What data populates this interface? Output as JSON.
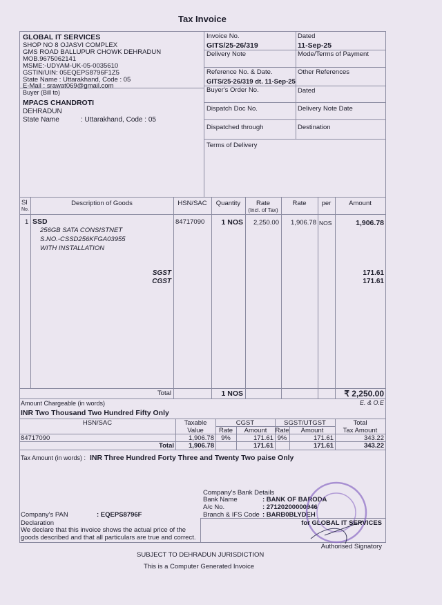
{
  "title": "Tax Invoice",
  "seller": {
    "name": "GLOBAL IT SERVICES",
    "lines": [
      "SHOP NO 8 OJASVI COMPLEX",
      "GMS ROAD BALLUPUR CHOWK DEHRADUN",
      "MOB.9675062141",
      "MSME:-UDYAM-UK-05-0035610",
      "GSTIN/UIN: 05EQEPS8796F1Z5",
      "State Name :  Uttarakhand, Code : 05",
      "E-Mail : srawat069@gmail.com"
    ]
  },
  "buyer": {
    "label": "Buyer (Bill to)",
    "name": "MPACS CHANDROTI",
    "city": "DEHRADUN",
    "state_label": "State Name",
    "state_value": ":  Uttarakhand, Code : 05"
  },
  "meta": {
    "invoice_no_label": "Invoice No.",
    "invoice_no": "GITS/25-26/319",
    "dated_label": "Dated",
    "dated": "11-Sep-25",
    "delivery_note": "Delivery Note",
    "mode_terms": "Mode/Terms of Payment",
    "ref_label": "Reference No. & Date.",
    "ref_value": "GITS/25-26/319  dt. 11-Sep-25",
    "other_refs": "Other References",
    "buyers_order": "Buyer's Order No.",
    "dated2": "Dated",
    "dispatch_doc": "Dispatch Doc No.",
    "delivery_note_date": "Delivery Note Date",
    "dispatched_through": "Dispatched through",
    "destination": "Destination",
    "terms_delivery": "Terms of Delivery"
  },
  "items": {
    "headers": {
      "sl": "Sl",
      "no": "No.",
      "desc": "Description of Goods",
      "hsn": "HSN/SAC",
      "qty": "Quantity",
      "rate_incl": "Rate",
      "rate_incl2": "(Incl. of Tax)",
      "rate": "Rate",
      "per": "per",
      "amount": "Amount"
    },
    "row": {
      "sl": "1",
      "name": "SSD",
      "desc": [
        "256GB SATA CONSISTNET",
        "S.NO.-CSSD256KFGA03955",
        "WITH INSTALLATION"
      ],
      "hsn": "84717090",
      "qty": "1 NOS",
      "rate_incl": "2,250.00",
      "rate": "1,906.78",
      "per": "NOS",
      "amount": "1,906.78"
    },
    "sgst_label": "SGST",
    "sgst": "171.61",
    "cgst_label": "CGST",
    "cgst": "171.61",
    "total_label": "Total",
    "total_qty": "1 NOS",
    "total_amount": "₹ 2,250.00",
    "eoe": "E. & O.E"
  },
  "amount_words_label": "Amount Chargeable (in words)",
  "amount_words": "INR Two Thousand Two Hundred Fifty Only",
  "tax_table": {
    "hsn": "HSN/SAC",
    "taxable": "Taxable",
    "value": "Value",
    "cgst": "CGST",
    "sgst": "SGST/UTGST",
    "rate": "Rate",
    "amount": "Amount",
    "total": "Total",
    "tax_amount": "Tax Amount",
    "row": {
      "hsn": "84717090",
      "taxable": "1,906.78",
      "cgst_rate": "9%",
      "cgst_amt": "171.61",
      "sgst_rate": "9%",
      "sgst_amt": "171.61",
      "total": "343.22"
    },
    "total_row": {
      "label": "Total",
      "taxable": "1,906.78",
      "cgst_amt": "171.61",
      "sgst_amt": "171.61",
      "total": "343.22"
    }
  },
  "tax_words_label": "Tax Amount (in words)  :",
  "tax_words": "INR Three Hundred Forty Three and Twenty Two paise Only",
  "bank": {
    "heading": "Company's Bank Details",
    "name_label": "Bank Name",
    "name": ":  BANK OF BARODA",
    "ac_label": "A/c No.",
    "ac": ":  27120200000946",
    "ifs_label": "Branch & IFS Code",
    "ifs": ":  BARB0BLYDEH"
  },
  "pan_label": "Company's PAN",
  "pan": ":  EQEPS8796F",
  "declaration_label": "Declaration",
  "declaration": [
    "We declare that this invoice shows the actual price of the",
    "goods described and that all particulars are true and correct."
  ],
  "for_company": "for GLOBAL IT SERVICES",
  "signatory": "Authorised Signatory",
  "stamp_text": "GLOBAL IT SERVICES 9675062141 DEHRADUN",
  "jurisdiction": "SUBJECT TO DEHRADUN JURISDICTION",
  "computer_generated": "This is a Computer Generated Invoice"
}
